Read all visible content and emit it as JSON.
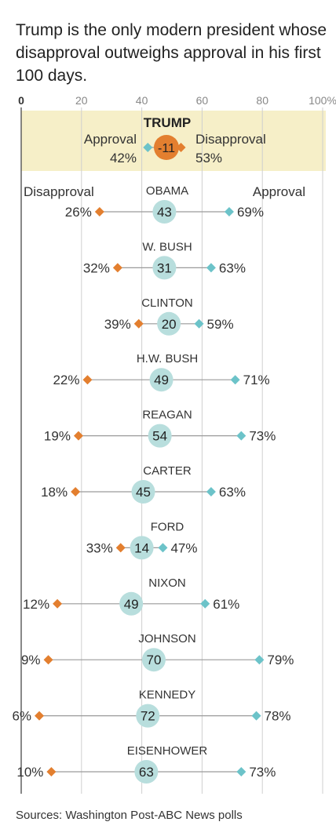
{
  "title": "Trump is the only modern president whose disapproval outweighs approval in his first 100 days.",
  "source": "Sources: Washington Post-ABC News polls",
  "colors": {
    "approval": "#6cc3c9",
    "disapproval": "#e37f2f",
    "net_bubble": "#b8dedd",
    "trump_bubble": "#e37f2f",
    "highlight_band": "#f6efc8",
    "grid": "#cfcfcf",
    "line": "#9a9a9a"
  },
  "chart_data": {
    "type": "dot",
    "xlim": [
      0,
      100
    ],
    "ticks": [
      "0",
      "20",
      "40",
      "60",
      "80",
      "100%"
    ],
    "tick_values": [
      0,
      20,
      40,
      60,
      80,
      100
    ],
    "legend": {
      "approval": "Approval",
      "disapproval": "Disapproval"
    },
    "presidents": [
      {
        "name": "TRUMP",
        "approval": 42,
        "disapproval": 53,
        "approval_label": "42%",
        "disapproval_label": "53%",
        "net": "-11",
        "highlight": true
      },
      {
        "name": "OBAMA",
        "approval": 69,
        "disapproval": 26,
        "approval_label": "69%",
        "disapproval_label": "26%",
        "net": "43"
      },
      {
        "name": "W. BUSH",
        "approval": 63,
        "disapproval": 32,
        "approval_label": "63%",
        "disapproval_label": "32%",
        "net": "31"
      },
      {
        "name": "CLINTON",
        "approval": 59,
        "disapproval": 39,
        "approval_label": "59%",
        "disapproval_label": "39%",
        "net": "20"
      },
      {
        "name": "H.W. BUSH",
        "approval": 71,
        "disapproval": 22,
        "approval_label": "71%",
        "disapproval_label": "22%",
        "net": "49"
      },
      {
        "name": "REAGAN",
        "approval": 73,
        "disapproval": 19,
        "approval_label": "73%",
        "disapproval_label": "19%",
        "net": "54"
      },
      {
        "name": "CARTER",
        "approval": 63,
        "disapproval": 18,
        "approval_label": "63%",
        "disapproval_label": "18%",
        "net": "45"
      },
      {
        "name": "FORD",
        "approval": 47,
        "disapproval": 33,
        "approval_label": "47%",
        "disapproval_label": "33%",
        "net": "14"
      },
      {
        "name": "NIXON",
        "approval": 61,
        "disapproval": 12,
        "approval_label": "61%",
        "disapproval_label": "12%",
        "net": "49"
      },
      {
        "name": "JOHNSON",
        "approval": 79,
        "disapproval": 9,
        "approval_label": "79%",
        "disapproval_label": "9%",
        "net": "70"
      },
      {
        "name": "KENNEDY",
        "approval": 78,
        "disapproval": 6,
        "approval_label": "78%",
        "disapproval_label": "6%",
        "net": "72"
      },
      {
        "name": "EISENHOWER",
        "approval": 73,
        "disapproval": 10,
        "approval_label": "73%",
        "disapproval_label": "10%",
        "net": "63"
      }
    ]
  }
}
